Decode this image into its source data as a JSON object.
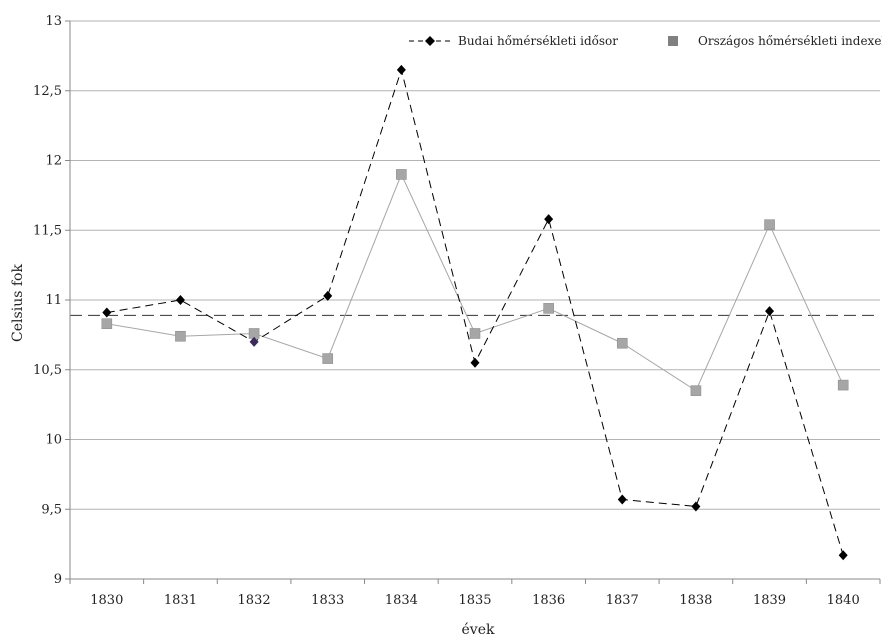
{
  "chart_data": {
    "type": "line",
    "title": "",
    "xlabel": "évek",
    "ylabel": "Celsius fok",
    "categories": [
      "1830",
      "1831",
      "1832",
      "1833",
      "1834",
      "1835",
      "1836",
      "1837",
      "1838",
      "1839",
      "1840"
    ],
    "ylim": [
      9,
      13
    ],
    "yticks": [
      9,
      9.5,
      10,
      10.5,
      11,
      11.5,
      12,
      12.5,
      13
    ],
    "ytick_labels": [
      "9",
      "9,5",
      "10",
      "10,5",
      "11",
      "11,5",
      "12",
      "12,5",
      "13"
    ],
    "grid": true,
    "legend": "top",
    "reference_line": {
      "value": 10.89,
      "style": "dashed"
    },
    "series": [
      {
        "name": "Budai hőmérsékleti idősor",
        "values": [
          10.91,
          11.0,
          10.7,
          11.03,
          12.65,
          10.55,
          11.58,
          9.57,
          9.52,
          10.92,
          9.17
        ],
        "color": "#000000",
        "line_color": "#000000",
        "marker": "diamond",
        "line_style": "dashed"
      },
      {
        "name": "Országos hőmérsékleti indexek",
        "values": [
          10.83,
          10.74,
          10.76,
          10.58,
          11.9,
          10.76,
          10.94,
          10.69,
          10.35,
          11.54,
          10.39
        ],
        "color": "#a6a6a6",
        "line_color": "#a6a6a6",
        "legend_color": "#808080",
        "marker": "square",
        "line_style": "solid"
      }
    ]
  }
}
